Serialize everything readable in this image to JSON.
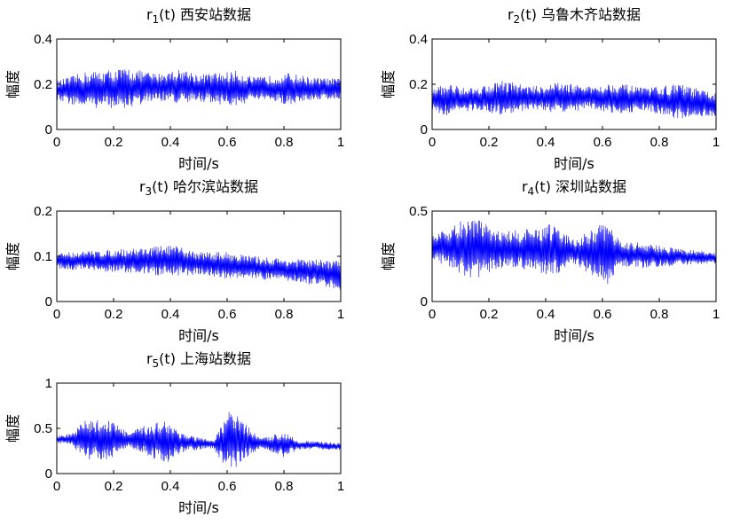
{
  "chart_data": [
    {
      "type": "line",
      "title_prefix": "r",
      "title_sub": "1",
      "title_suffix": "(t) 西安站数据",
      "xlabel": "时间/s",
      "ylabel": "幅度",
      "xlim": [
        0,
        1
      ],
      "ylim": [
        0,
        0.4
      ],
      "xticks": [
        0,
        0.2,
        0.4,
        0.6,
        0.8,
        1
      ],
      "xtick_labels": [
        "0",
        "0.2",
        "0.4",
        "0.6",
        "0.8",
        "1"
      ],
      "yticks": [
        0,
        0.2,
        0.4
      ],
      "ytick_labels": [
        "0",
        "0.2",
        "0.4"
      ],
      "color": "#0000ff",
      "grid": false,
      "signal": {
        "samples": 600,
        "baseline": [
          [
            0,
            0.17
          ],
          [
            0.2,
            0.18
          ],
          [
            0.4,
            0.19
          ],
          [
            0.6,
            0.18
          ],
          [
            0.8,
            0.18
          ],
          [
            1,
            0.18
          ]
        ],
        "amplitude": [
          [
            0,
            0.045
          ],
          [
            0.1,
            0.08
          ],
          [
            0.25,
            0.09
          ],
          [
            0.35,
            0.06
          ],
          [
            0.45,
            0.08
          ],
          [
            0.5,
            0.06
          ],
          [
            0.63,
            0.08
          ],
          [
            0.7,
            0.05
          ],
          [
            0.82,
            0.07
          ],
          [
            0.9,
            0.05
          ],
          [
            1,
            0.045
          ]
        ]
      }
    },
    {
      "type": "line",
      "title_prefix": "r",
      "title_sub": "2",
      "title_suffix": "(t) 乌鲁木齐站数据",
      "xlabel": "时间/s",
      "ylabel": "幅度",
      "xlim": [
        0,
        1
      ],
      "ylim": [
        0,
        0.4
      ],
      "xticks": [
        0,
        0.2,
        0.4,
        0.6,
        0.8,
        1
      ],
      "xtick_labels": [
        "0",
        "0.2",
        "0.4",
        "0.6",
        "0.8",
        "1"
      ],
      "yticks": [
        0,
        0.2,
        0.4
      ],
      "ytick_labels": [
        "0",
        "0.2",
        "0.4"
      ],
      "color": "#0000ff",
      "grid": false,
      "signal": {
        "samples": 600,
        "baseline": [
          [
            0,
            0.13
          ],
          [
            0.3,
            0.14
          ],
          [
            0.6,
            0.14
          ],
          [
            0.8,
            0.13
          ],
          [
            1,
            0.11
          ]
        ],
        "amplitude": [
          [
            0,
            0.05
          ],
          [
            0.05,
            0.07
          ],
          [
            0.15,
            0.05
          ],
          [
            0.25,
            0.08
          ],
          [
            0.35,
            0.05
          ],
          [
            0.45,
            0.07
          ],
          [
            0.55,
            0.05
          ],
          [
            0.65,
            0.07
          ],
          [
            0.75,
            0.05
          ],
          [
            0.87,
            0.08
          ],
          [
            1,
            0.05
          ]
        ]
      }
    },
    {
      "type": "line",
      "title_prefix": "r",
      "title_sub": "3",
      "title_suffix": "(t) 哈尔滨站数据",
      "xlabel": "时间/s",
      "ylabel": "幅度",
      "xlim": [
        0,
        1
      ],
      "ylim": [
        0,
        0.2
      ],
      "xticks": [
        0,
        0.2,
        0.4,
        0.6,
        0.8,
        1
      ],
      "xtick_labels": [
        "0",
        "0.2",
        "0.4",
        "0.6",
        "0.8",
        "1"
      ],
      "yticks": [
        0,
        0.1,
        0.2
      ],
      "ytick_labels": [
        "0",
        "0.1",
        "0.2"
      ],
      "color": "#0000ff",
      "grid": false,
      "signal": {
        "samples": 600,
        "baseline": [
          [
            0,
            0.09
          ],
          [
            0.4,
            0.09
          ],
          [
            0.6,
            0.08
          ],
          [
            0.8,
            0.07
          ],
          [
            1,
            0.06
          ]
        ],
        "amplitude": [
          [
            0,
            0.018
          ],
          [
            0.2,
            0.025
          ],
          [
            0.3,
            0.03
          ],
          [
            0.4,
            0.035
          ],
          [
            0.5,
            0.025
          ],
          [
            0.6,
            0.03
          ],
          [
            0.7,
            0.025
          ],
          [
            0.8,
            0.025
          ],
          [
            0.95,
            0.03
          ],
          [
            1,
            0.035
          ]
        ]
      }
    },
    {
      "type": "line",
      "title_prefix": "r",
      "title_sub": "4",
      "title_suffix": "(t) 深圳站数据",
      "xlabel": "时间/s",
      "ylabel": "幅度",
      "xlim": [
        0,
        1
      ],
      "ylim": [
        0,
        0.5
      ],
      "xticks": [
        0,
        0.2,
        0.4,
        0.6,
        0.8,
        1
      ],
      "xtick_labels": [
        "0",
        "0.2",
        "0.4",
        "0.6",
        "0.8",
        "1"
      ],
      "yticks": [
        0,
        0.5
      ],
      "ytick_labels": [
        "0",
        "0.5"
      ],
      "color": "#0000ff",
      "grid": false,
      "signal": {
        "samples": 600,
        "baseline": [
          [
            0,
            0.3
          ],
          [
            0.2,
            0.29
          ],
          [
            0.4,
            0.28
          ],
          [
            0.6,
            0.27
          ],
          [
            0.8,
            0.25
          ],
          [
            1,
            0.24
          ]
        ],
        "amplitude": [
          [
            0,
            0.06
          ],
          [
            0.1,
            0.15
          ],
          [
            0.15,
            0.17
          ],
          [
            0.25,
            0.1
          ],
          [
            0.35,
            0.12
          ],
          [
            0.42,
            0.15
          ],
          [
            0.5,
            0.07
          ],
          [
            0.62,
            0.18
          ],
          [
            0.66,
            0.07
          ],
          [
            0.75,
            0.07
          ],
          [
            0.85,
            0.05
          ],
          [
            1,
            0.03
          ]
        ]
      }
    },
    {
      "type": "line",
      "title_prefix": "r",
      "title_sub": "5",
      "title_suffix": "(t) 上海站数据",
      "xlabel": "时间/s",
      "ylabel": "幅度",
      "xlim": [
        0,
        1
      ],
      "ylim": [
        0,
        1
      ],
      "xticks": [
        0,
        0.2,
        0.4,
        0.6,
        0.8,
        1
      ],
      "xtick_labels": [
        "0",
        "0.2",
        "0.4",
        "0.6",
        "0.8",
        "1"
      ],
      "yticks": [
        0,
        0.5,
        1
      ],
      "ytick_labels": [
        "0",
        "0.5",
        "1"
      ],
      "color": "#0000ff",
      "grid": false,
      "signal": {
        "samples": 600,
        "baseline": [
          [
            0,
            0.38
          ],
          [
            0.3,
            0.37
          ],
          [
            0.55,
            0.32
          ],
          [
            0.62,
            0.37
          ],
          [
            0.75,
            0.33
          ],
          [
            1,
            0.3
          ]
        ],
        "amplitude": [
          [
            0,
            0.04
          ],
          [
            0.05,
            0.06
          ],
          [
            0.1,
            0.22
          ],
          [
            0.2,
            0.22
          ],
          [
            0.25,
            0.08
          ],
          [
            0.38,
            0.25
          ],
          [
            0.45,
            0.1
          ],
          [
            0.55,
            0.04
          ],
          [
            0.61,
            0.36
          ],
          [
            0.66,
            0.2
          ],
          [
            0.72,
            0.05
          ],
          [
            0.8,
            0.15
          ],
          [
            0.85,
            0.05
          ],
          [
            1,
            0.04
          ]
        ]
      }
    }
  ]
}
